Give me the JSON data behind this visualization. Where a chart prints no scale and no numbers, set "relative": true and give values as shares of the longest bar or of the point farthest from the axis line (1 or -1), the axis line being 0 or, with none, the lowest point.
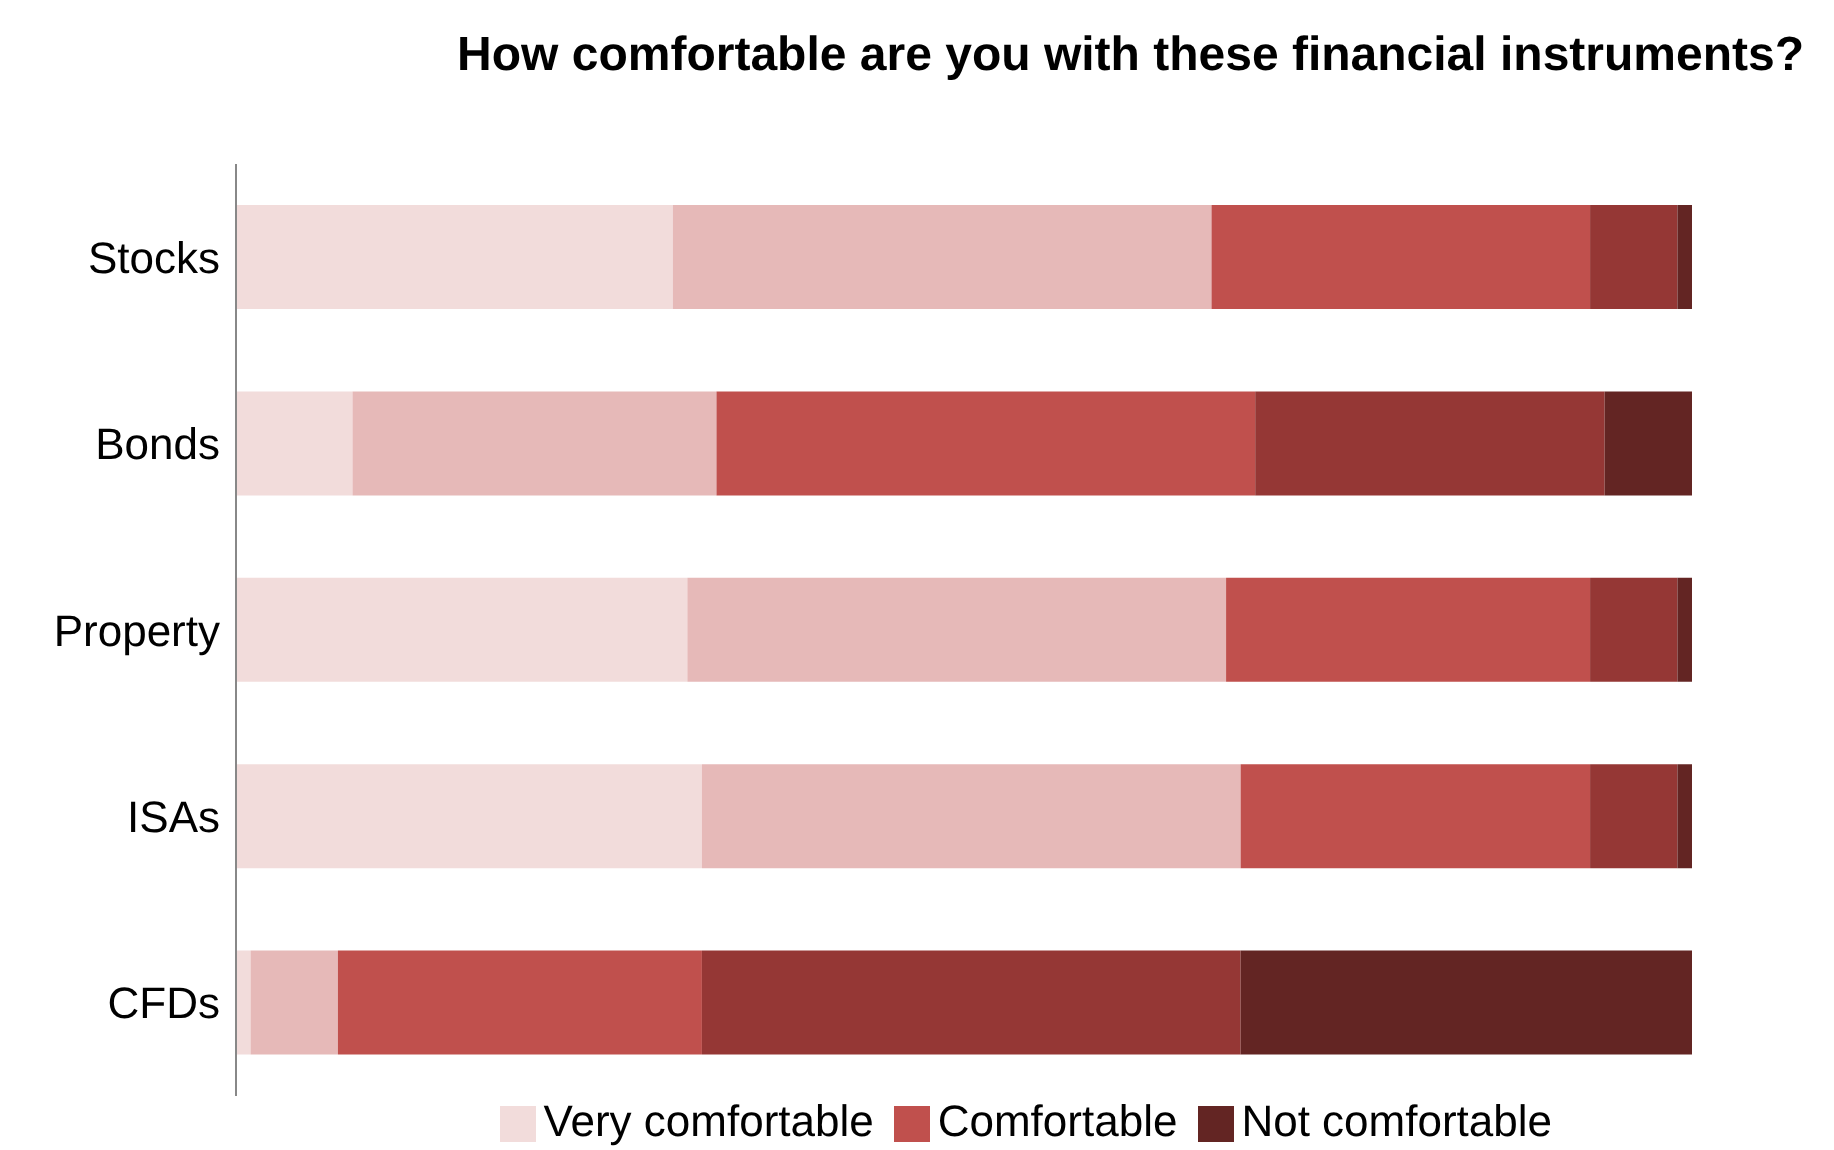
{
  "chart_data": {
    "type": "bar",
    "orientation": "horizontal",
    "stacked": true,
    "relative": true,
    "title": "How comfortable are you with these financial instruments?",
    "categories": [
      "Stocks",
      "Bonds",
      "Property",
      "ISAs",
      "CFDs"
    ],
    "legend": "bottom",
    "grid": false,
    "series": [
      {
        "name": "Very comfortable",
        "color": "#f2dcdb",
        "values": [
          0.3,
          0.08,
          0.31,
          0.32,
          0.01
        ]
      },
      {
        "color": "#e6b9b8",
        "values": [
          0.37,
          0.25,
          0.37,
          0.37,
          0.06
        ]
      },
      {
        "name": "Comfortable",
        "color": "#c0504d",
        "values": [
          0.26,
          0.37,
          0.25,
          0.24,
          0.25
        ]
      },
      {
        "color": "#953735",
        "values": [
          0.06,
          0.24,
          0.06,
          0.06,
          0.37
        ]
      },
      {
        "name": "Not comfortable",
        "color": "#632523",
        "values": [
          0.01,
          0.06,
          0.01,
          0.01,
          0.31
        ]
      }
    ]
  }
}
